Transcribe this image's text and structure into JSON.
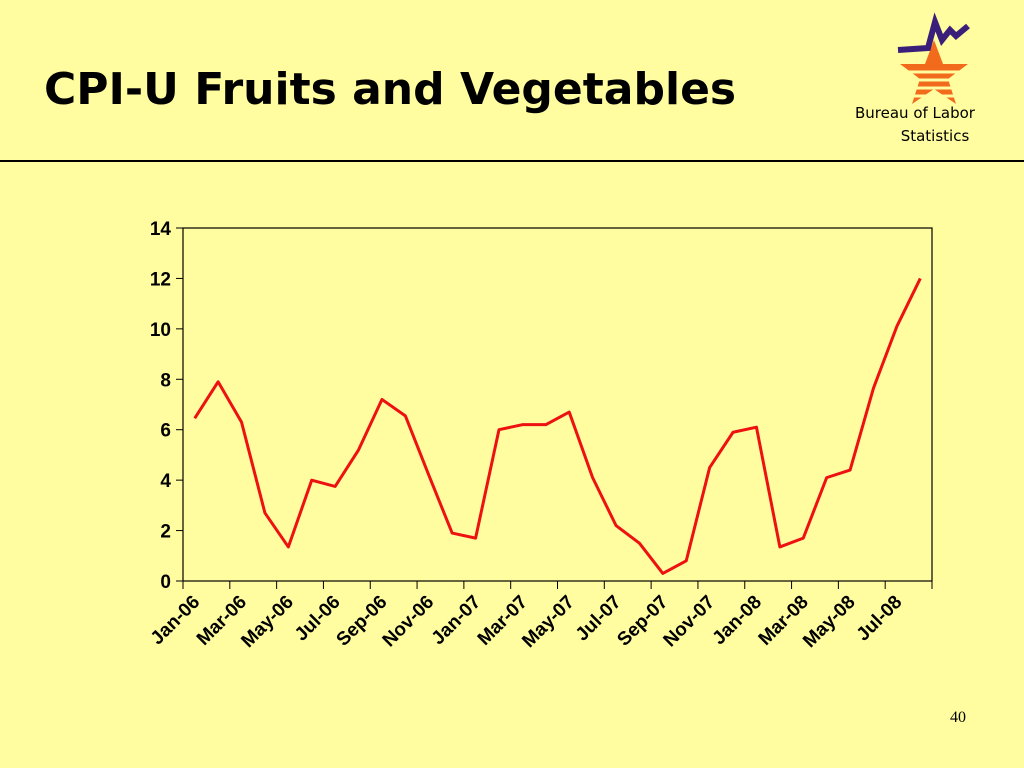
{
  "title": "CPI-U Fruits and Vegetables",
  "agency": [
    "Bureau of Labor",
    "Statistics"
  ],
  "page_number": "40",
  "chart_data": {
    "type": "line",
    "categories": [
      "Jan-06",
      null,
      "Mar-06",
      null,
      "May-06",
      null,
      "Jul-06",
      null,
      "Sep-06",
      null,
      "Nov-06",
      null,
      "Jan-07",
      null,
      "Mar-07",
      null,
      "May-07",
      null,
      "Jul-07",
      null,
      "Sep-07",
      null,
      "Nov-07",
      null,
      "Jan-08",
      null,
      "Mar-08",
      null,
      "May-08",
      null,
      "Jul-08",
      null
    ],
    "series": [
      {
        "color": "#ee1111",
        "values": [
          6.45,
          7.9,
          6.3,
          2.7,
          1.35,
          4.0,
          3.75,
          5.2,
          7.2,
          6.55,
          4.2,
          1.9,
          1.7,
          6.0,
          6.2,
          6.2,
          6.7,
          4.1,
          2.2,
          1.5,
          0.3,
          0.8,
          4.5,
          5.9,
          6.1,
          1.35,
          1.7,
          4.1,
          4.4,
          7.65,
          10.1,
          12.0
        ]
      }
    ],
    "ylim": [
      0,
      14
    ],
    "yticks": [
      0,
      2,
      4,
      6,
      8,
      10,
      12,
      14
    ]
  }
}
